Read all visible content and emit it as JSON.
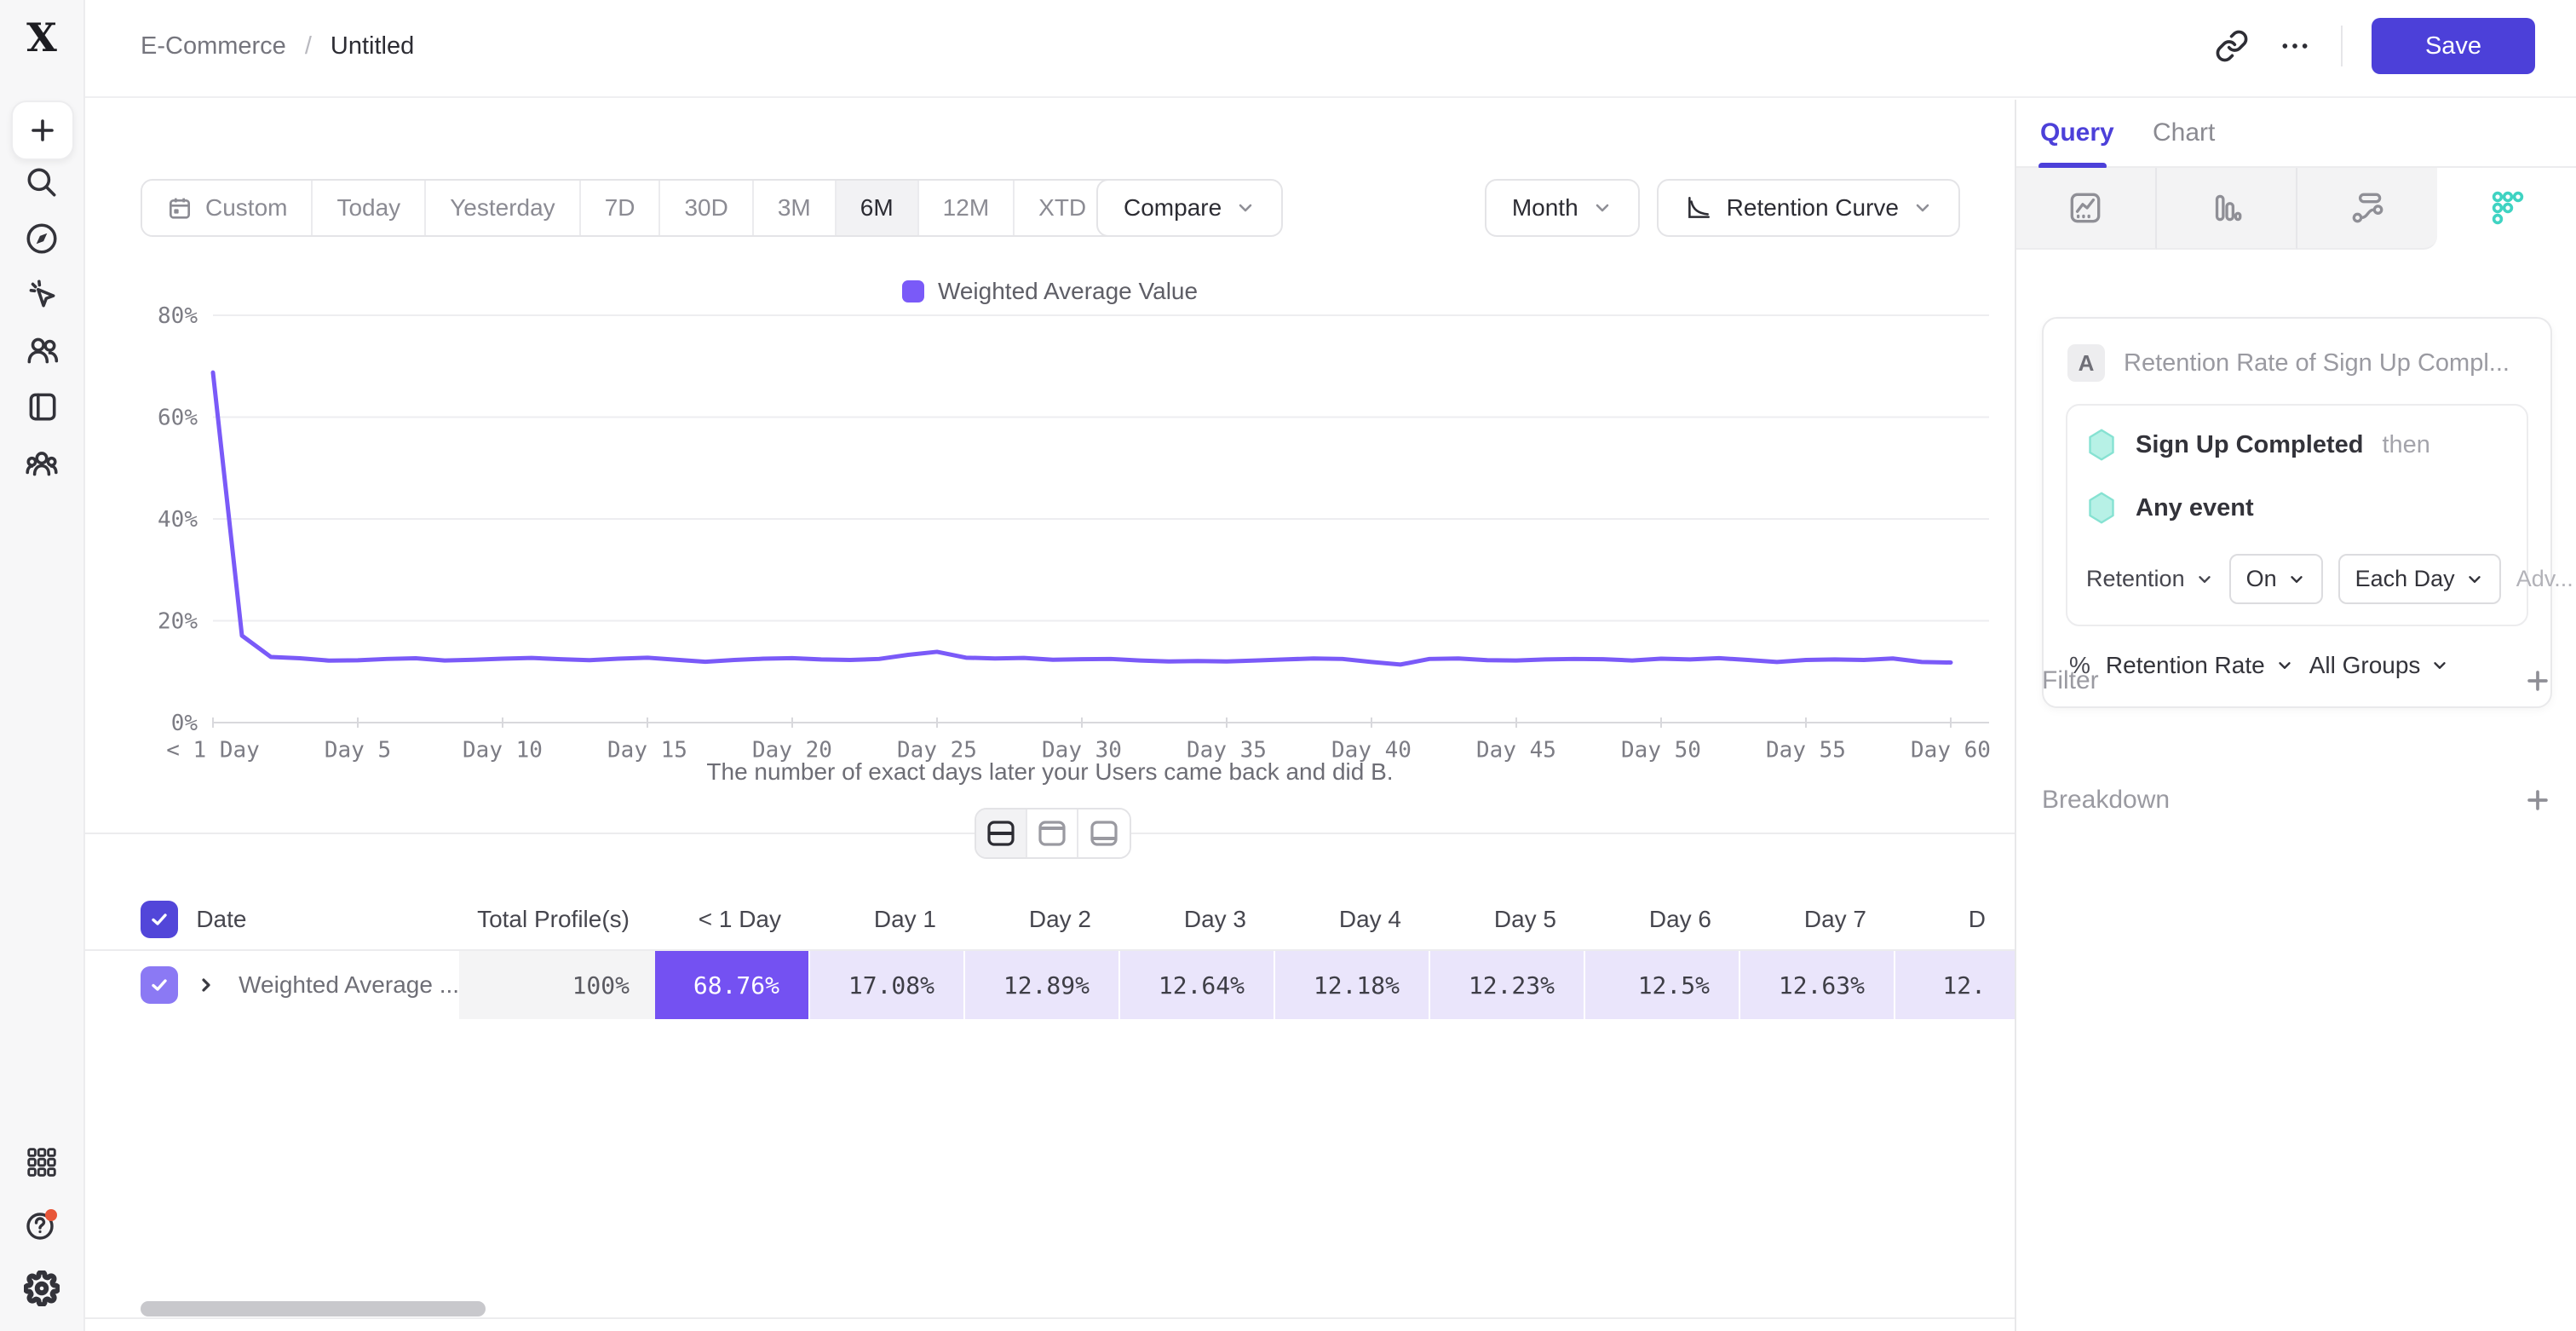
{
  "header": {
    "breadcrumb": {
      "parent": "E-Commerce",
      "separator": "/",
      "current": "Untitled"
    },
    "save_label": "Save"
  },
  "sidebar": {
    "icons": [
      "mixpanel-logo",
      "create-plus",
      "search",
      "discover-compass",
      "events-cursor",
      "users",
      "boards",
      "cohorts",
      "apps-grid",
      "help",
      "settings"
    ]
  },
  "toolbar": {
    "date_ranges": [
      "Custom",
      "Today",
      "Yesterday",
      "7D",
      "30D",
      "3M",
      "6M",
      "12M",
      "XTD"
    ],
    "selected": "6M",
    "dropdown_range": "XTD",
    "compare_label": "Compare",
    "granularity_label": "Month",
    "chart_type_label": "Retention Curve"
  },
  "chart_data": {
    "type": "line",
    "legend": [
      "Weighted Average Value"
    ],
    "series": [
      {
        "name": "Weighted Average Value",
        "color": "#7A5AF8",
        "values": [
          68.76,
          17.08,
          12.89,
          12.64,
          12.18,
          12.23,
          12.5,
          12.63,
          12.2,
          12.35,
          12.55,
          12.7,
          12.45,
          12.25,
          12.55,
          12.75,
          12.35,
          11.95,
          12.3,
          12.55,
          12.65,
          12.4,
          12.3,
          12.5,
          13.3,
          13.9,
          12.75,
          12.6,
          12.7,
          12.35,
          12.45,
          12.5,
          12.2,
          12.0,
          12.1,
          12.0,
          12.2,
          12.4,
          12.6,
          12.5,
          11.9,
          11.4,
          12.5,
          12.6,
          12.25,
          12.2,
          12.4,
          12.5,
          12.45,
          12.2,
          12.55,
          12.4,
          12.65,
          12.3,
          11.9,
          12.3,
          12.4,
          12.3,
          12.6,
          11.9,
          11.8
        ]
      }
    ],
    "x_unit": "day",
    "xticks": {
      "days": [
        0,
        5,
        10,
        15,
        20,
        25,
        30,
        35,
        40,
        45,
        50,
        55,
        60
      ],
      "labels": [
        "< 1 Day",
        "Day 5",
        "Day 10",
        "Day 15",
        "Day 20",
        "Day 25",
        "Day 30",
        "Day 35",
        "Day 40",
        "Day 45",
        "Day 50",
        "Day 55",
        "Day 60"
      ]
    },
    "yticks": {
      "values": [
        0,
        20,
        40,
        60,
        80
      ],
      "labels": [
        "0%",
        "20%",
        "40%",
        "60%",
        "80%"
      ]
    },
    "ylim": [
      0,
      80
    ],
    "xlabel": "The number of exact days later your Users came back and did B.",
    "grid": "horizontal"
  },
  "view_toggle": {
    "options": [
      "split-view",
      "chart-only",
      "table-only"
    ],
    "active": "split-view"
  },
  "table": {
    "select_all_checked": true,
    "name_header": "Date",
    "total_header": "Total Profile(s)",
    "day_headers": [
      "< 1 Day",
      "Day 1",
      "Day 2",
      "Day 3",
      "Day 4",
      "Day 5",
      "Day 6",
      "Day 7"
    ],
    "clipped_header": "D",
    "row": {
      "checked": true,
      "name": "Weighted Average ...",
      "total": "100%",
      "values": [
        "68.76%",
        "17.08%",
        "12.89%",
        "12.64%",
        "12.18%",
        "12.23%",
        "12.5%",
        "12.63%"
      ],
      "clipped_value": "12."
    }
  },
  "query_panel": {
    "tabs": [
      "Query",
      "Chart"
    ],
    "active_tab": "Query",
    "report_types": [
      "insights",
      "funnels",
      "flows",
      "retention"
    ],
    "active_report_type": "retention",
    "query": {
      "step_label": "A",
      "title": "Retention Rate of Sign Up Compl...",
      "first_event": "Sign Up Completed",
      "then_label": "then",
      "return_event": "Any event",
      "controls": {
        "mode": "Retention",
        "on": "On",
        "bucket": "Each Day",
        "advanced": "Adv..."
      },
      "metric_prefix": "%",
      "metric": "Retention Rate",
      "groups": "All Groups"
    },
    "sections": [
      {
        "label": "Filter"
      },
      {
        "label": "Breakdown"
      }
    ]
  },
  "colors": {
    "accent": "#4C40D9",
    "line": "#7A5AF8",
    "teal": "#3FD3C2",
    "cell_strong": "#7451F2",
    "cell_light": "#EAE5FB",
    "legend_swatch": "#7A5AF8"
  }
}
